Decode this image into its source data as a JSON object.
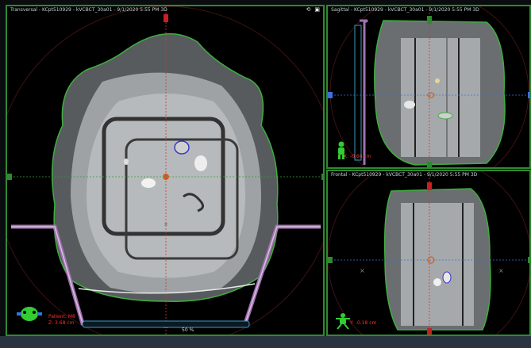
{
  "viewports": {
    "transversal": {
      "title": "Transversal - KCpt510929 - kVCBCT_30a01 - 9/1/2020 5:55 PM 3D",
      "readout_line1": "Patient: M8",
      "readout_line2": "Z: 3.68 cm",
      "zoom": "50 %",
      "controls": [
        "reset-icon",
        "maximize-icon"
      ]
    },
    "sagittal": {
      "title": "Sagittal - KCpt510929 - kVCBCT_30a01 - 9/1/2020 5:55 PM 3D",
      "readout": "X: -0.68 cm"
    },
    "frontal": {
      "title": "Frontal - KCpt510929 - kVCBCT_30a01 - 9/1/2020 5:55 PM 3D",
      "readout": "Y: -0.18 cm"
    }
  },
  "colors": {
    "viewport_border": "#2f8a2f",
    "crosshair_vertical": "#e03030",
    "crosshair_horizontal": "#3a70e0",
    "body_contour": "#3fae3f",
    "couch": "#a070b0",
    "readout": "#ff2d2d",
    "orientation_figure": "#33cc33"
  },
  "icons": {
    "orientation_transversal": "orientation-figure-icon",
    "orientation_sagittal": "orientation-figure-icon",
    "orientation_frontal": "orientation-figure-icon"
  }
}
